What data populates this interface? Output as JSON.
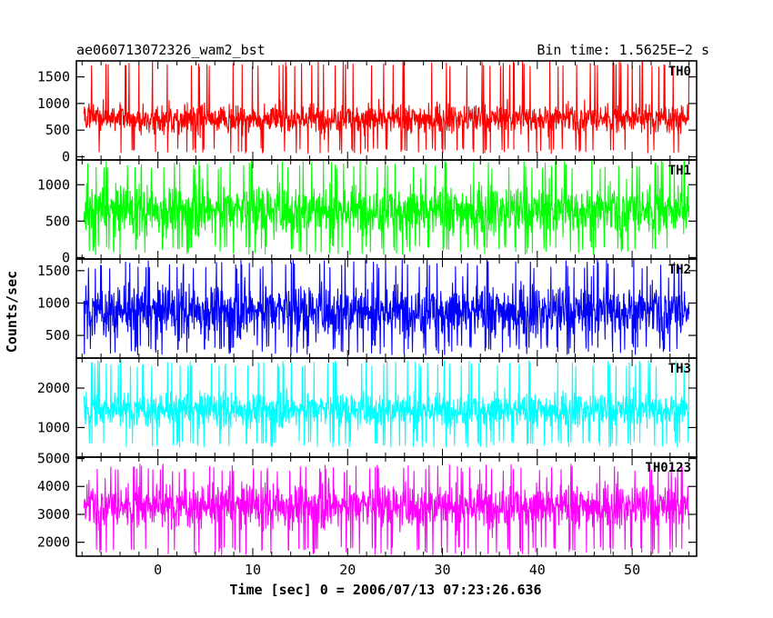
{
  "chart_data": {
    "type": "line",
    "title": "ae060713072326_wam2_bst",
    "subtitle": "Bin time: 1.5625E−2 s",
    "xlabel": "Time [sec] 0 = 2006/07/13 07:23:26.636",
    "ylabel": "Counts/sec",
    "xlim": [
      -8.6,
      56.8
    ],
    "x_ticks": [
      0,
      10,
      20,
      30,
      40,
      50
    ],
    "x_data_range": [
      -7.8,
      56.0
    ],
    "grid": false,
    "panels": [
      {
        "name": "TH0",
        "color": "#ff0000",
        "ylim": [
          -60,
          1800
        ],
        "y_ticks": [
          0,
          500,
          1000,
          1500
        ],
        "mean": 720,
        "spread": 210,
        "min": 60,
        "max": 1790
      },
      {
        "name": "TH1",
        "color": "#00ff00",
        "ylim": [
          -20,
          1340
        ],
        "y_ticks": [
          0,
          500,
          1000
        ],
        "mean": 650,
        "spread": 260,
        "min": 40,
        "max": 1340
      },
      {
        "name": "TH2",
        "color": "#0000ff",
        "ylim": [
          150,
          1680
        ],
        "y_ticks": [
          500,
          1000,
          1500
        ],
        "mean": 880,
        "spread": 310,
        "min": 200,
        "max": 1680
      },
      {
        "name": "TH3",
        "color": "#00ffff",
        "ylim": [
          250,
          2760
        ],
        "y_ticks": [
          1000,
          2000
        ],
        "mean": 1450,
        "spread": 330,
        "min": 500,
        "max": 2700
      },
      {
        "name": "TH0123",
        "color": "#ff00ff",
        "ylim": [
          1500,
          5050
        ],
        "y_ticks": [
          2000,
          3000,
          4000,
          5000
        ],
        "mean": 3300,
        "spread": 600,
        "min": 1550,
        "max": 4800
      }
    ]
  }
}
